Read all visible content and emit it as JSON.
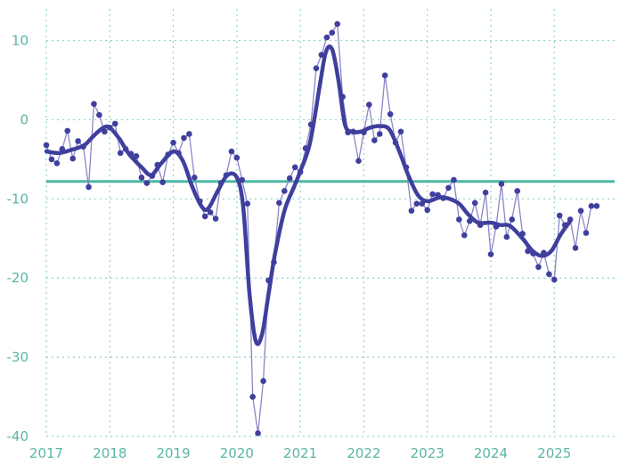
{
  "chart_data": {
    "type": "line",
    "title": "",
    "xlabel": "",
    "ylabel": "",
    "xlim": [
      2017.0,
      2025.95
    ],
    "ylim": [
      -40,
      14
    ],
    "grid": true,
    "x_ticks": [
      2017,
      2018,
      2019,
      2020,
      2021,
      2022,
      2023,
      2024,
      2025
    ],
    "x_tick_labels": [
      "2017",
      "2018",
      "2019",
      "2020",
      "2021",
      "2022",
      "2023",
      "2024",
      "2025"
    ],
    "y_ticks": [
      10,
      0,
      -10,
      -20,
      -30,
      -40
    ],
    "y_tick_labels": [
      "10",
      "0",
      "-10",
      "-20",
      "-30",
      "-40"
    ],
    "reference_line": {
      "y": -7.8
    },
    "colors": {
      "monthly": "#8e85c9",
      "trend": "#3f3f9e",
      "reference": "#4ab8a6",
      "grid": "#8fd3c8",
      "tick": "#5ab5a8"
    },
    "series": [
      {
        "x": [
          2017.0,
          2017.083,
          2017.167,
          2017.25,
          2017.333,
          2017.417,
          2017.5,
          2017.583,
          2017.667,
          2017.75,
          2017.833,
          2017.917,
          2018.0,
          2018.083,
          2018.167,
          2018.25,
          2018.333,
          2018.417,
          2018.5,
          2018.583,
          2018.667,
          2018.75,
          2018.833,
          2018.917,
          2019.0,
          2019.083,
          2019.167,
          2019.25,
          2019.333,
          2019.417,
          2019.5,
          2019.583,
          2019.667,
          2019.75,
          2019.833,
          2019.917,
          2020.0,
          2020.083,
          2020.167,
          2020.25,
          2020.333,
          2020.417,
          2020.5,
          2020.583,
          2020.667,
          2020.75,
          2020.833,
          2020.917,
          2021.0,
          2021.083,
          2021.167,
          2021.25,
          2021.333,
          2021.417,
          2021.5,
          2021.583,
          2021.667,
          2021.75,
          2021.833,
          2021.917,
          2022.0,
          2022.083,
          2022.167,
          2022.25,
          2022.333,
          2022.417,
          2022.5,
          2022.583,
          2022.667,
          2022.75,
          2022.833,
          2022.917,
          2023.0,
          2023.083,
          2023.167,
          2023.25,
          2023.333,
          2023.417,
          2023.5,
          2023.583,
          2023.667,
          2023.75,
          2023.833,
          2023.917,
          2024.0,
          2024.083,
          2024.167,
          2024.25,
          2024.333,
          2024.417,
          2024.5,
          2024.583,
          2024.667,
          2024.75,
          2024.833,
          2024.917,
          2025.0,
          2025.083,
          2025.167,
          2025.25,
          2025.333,
          2025.417,
          2025.5,
          2025.583,
          2025.667
        ],
        "values": [
          -3.2,
          -5.0,
          -5.5,
          -3.7,
          -1.4,
          -4.9,
          -2.7,
          -3.4,
          -8.5,
          2.0,
          0.6,
          -1.5,
          -1.0,
          -0.5,
          -4.2,
          -3.7,
          -4.3,
          -4.6,
          -7.3,
          -8.0,
          -7.1,
          -5.7,
          -7.9,
          -4.4,
          -2.9,
          -4.2,
          -2.3,
          -1.8,
          -7.3,
          -10.3,
          -12.2,
          -11.7,
          -12.5,
          -8.0,
          -7.0,
          -4.0,
          -4.8,
          -7.6,
          -10.6,
          -35.0,
          -39.6,
          -33.0,
          -20.3,
          -18.0,
          -10.5,
          -9.0,
          -7.4,
          -6.0,
          -6.6,
          -3.6,
          -0.6,
          6.5,
          8.2,
          10.4,
          11.0,
          12.1,
          2.9,
          -1.6,
          -1.5,
          -5.2,
          -1.6,
          1.9,
          -2.6,
          -1.8,
          5.6,
          0.7,
          -2.9,
          -1.5,
          -6.0,
          -11.5,
          -10.6,
          -10.6,
          -11.4,
          -9.4,
          -9.5,
          -9.9,
          -8.6,
          -7.6,
          -12.6,
          -14.6,
          -12.8,
          -10.5,
          -13.3,
          -9.2,
          -17.0,
          -13.5,
          -8.1,
          -14.8,
          -12.6,
          -9.0,
          -14.4,
          -16.6,
          -16.9,
          -18.6,
          -16.8,
          -19.5,
          -20.2,
          -12.1,
          -13.3,
          -12.6,
          -16.2,
          -11.5,
          -14.3,
          -10.9,
          -10.9
        ]
      },
      {
        "x": [
          2017.0,
          2017.2,
          2017.4,
          2017.6,
          2017.75,
          2017.9,
          2018.0,
          2018.15,
          2018.3,
          2018.5,
          2018.65,
          2018.8,
          2019.0,
          2019.15,
          2019.3,
          2019.45,
          2019.55,
          2019.7,
          2019.85,
          2020.0,
          2020.1,
          2020.2,
          2020.3,
          2020.4,
          2020.5,
          2020.6,
          2020.75,
          2020.9,
          2021.0,
          2021.15,
          2021.3,
          2021.4,
          2021.5,
          2021.6,
          2021.7,
          2021.8,
          2021.95,
          2022.1,
          2022.25,
          2022.4,
          2022.55,
          2022.7,
          2022.85,
          2023.0,
          2023.2,
          2023.35,
          2023.5,
          2023.65,
          2023.8,
          2024.0,
          2024.15,
          2024.3,
          2024.5,
          2024.65,
          2024.8,
          2024.95,
          2025.1,
          2025.25
        ],
        "values": [
          -4.0,
          -4.2,
          -3.8,
          -3.2,
          -2.0,
          -1.0,
          -1.0,
          -2.4,
          -4.3,
          -6.0,
          -7.0,
          -5.6,
          -4.0,
          -5.2,
          -8.5,
          -11.0,
          -11.2,
          -9.0,
          -7.0,
          -7.3,
          -11.0,
          -22.0,
          -28.0,
          -27.0,
          -22.0,
          -17.0,
          -11.5,
          -8.5,
          -6.5,
          -3.0,
          4.0,
          8.5,
          8.9,
          5.0,
          -0.5,
          -1.5,
          -1.5,
          -1.0,
          -0.8,
          -1.2,
          -3.8,
          -7.0,
          -9.5,
          -10.3,
          -9.8,
          -10.0,
          -10.6,
          -12.0,
          -13.0,
          -13.0,
          -13.3,
          -13.4,
          -15.0,
          -16.5,
          -17.2,
          -16.6,
          -14.5,
          -12.8
        ]
      }
    ]
  }
}
